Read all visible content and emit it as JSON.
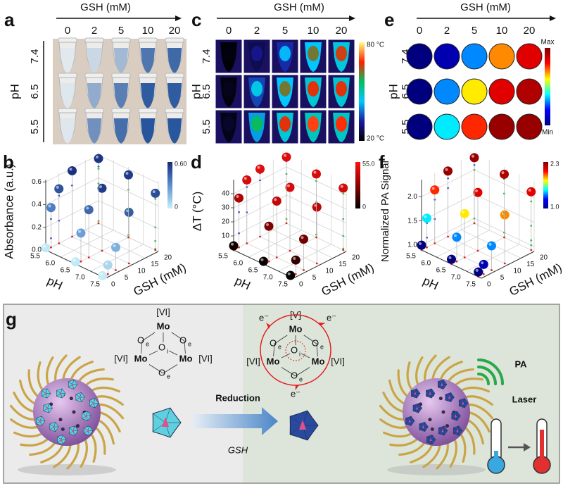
{
  "panel_a": {
    "label": "a",
    "title": "GSH (mM)",
    "columns": [
      0,
      2,
      5,
      10,
      20
    ],
    "axis_label": "pH",
    "rows": [
      7.4,
      6.5,
      5.5
    ]
  },
  "panel_c": {
    "label": "c",
    "title": "GSH (mM)",
    "columns": [
      0,
      2,
      5,
      10,
      20
    ],
    "axis_label": "pH",
    "rows": [
      7.4,
      6.5,
      5.5
    ],
    "colorbar_max": "80 °C",
    "colorbar_min": "20 °C",
    "colormap": [
      "#000000",
      "#1a1aa0",
      "#00c8ff",
      "#00c060",
      "#ff2000",
      "#ffff80"
    ]
  },
  "panel_e": {
    "label": "e",
    "title": "GSH (mM)",
    "columns": [
      0,
      2,
      5,
      10,
      20
    ],
    "axis_label": "pH",
    "rows": [
      7.4,
      6.5,
      5.5
    ],
    "colorbar_max": "Max",
    "colorbar_min": "Min"
  },
  "chart_data": [
    {
      "type": "scatter3d",
      "label": "b",
      "zlabel": "Absorbance (a.u.)",
      "xlabel": "pH",
      "ylabel": "GSH (mM)",
      "ph": [
        7.4,
        6.5,
        5.5
      ],
      "gsh": [
        0,
        2,
        5,
        10,
        20
      ],
      "values": [
        [
          0.01,
          0.08,
          0.2,
          0.45,
          0.5
        ],
        [
          0.02,
          0.25,
          0.42,
          0.55,
          0.55
        ],
        [
          0.02,
          0.35,
          0.48,
          0.58,
          0.57
        ]
      ],
      "xlim": [
        5.5,
        7.5
      ],
      "xticks": [
        5.5,
        {
          "value": 6,
          "label": "6.0"
        },
        6.5,
        {
          "value": 7,
          "label": "7.0"
        },
        7.5
      ],
      "ylim": [
        0,
        20
      ],
      "yticks": [
        0,
        5,
        10,
        15,
        20
      ],
      "zlim": [
        0,
        0.62
      ],
      "zticks": [
        {
          "value": 0,
          "label": "0.0"
        },
        0.2,
        0.4,
        0.6
      ],
      "clim": [
        0,
        {
          "value": 0.6,
          "label": "0.60"
        }
      ],
      "colormap": [
        "#c8f0f8",
        "#5a8fd0",
        "#142a7a"
      ]
    },
    {
      "type": "scatter3d",
      "label": "d",
      "zlabel": "ΔT (°C)",
      "xlabel": "pH",
      "ylabel": "GSH (mM)",
      "ph": [
        7.4,
        6.5,
        5.5
      ],
      "gsh": [
        0,
        2,
        5,
        10,
        20
      ],
      "values": [
        [
          1,
          10,
          22,
          40,
          44
        ],
        [
          2,
          25,
          40,
          45,
          45
        ],
        [
          3,
          35,
          45,
          48,
          47
        ]
      ],
      "xlim": [
        5.5,
        7.5
      ],
      "xticks": [
        5.5,
        {
          "value": 6,
          "label": "6.0"
        },
        6.5,
        {
          "value": 7,
          "label": "7.0"
        },
        7.5
      ],
      "ylim": [
        0,
        20
      ],
      "yticks": [
        0,
        5,
        10,
        15,
        20
      ],
      "zlim": [
        0,
        50
      ],
      "zticks": [
        10,
        20,
        30,
        40
      ],
      "clim": [
        0,
        {
          "value": 55,
          "label": "55.0"
        }
      ],
      "colormap": [
        "#000000",
        "#8b0000",
        "#ff1010"
      ]
    },
    {
      "type": "scatter3d",
      "label": "f",
      "zlabel": "Normalized PA Signal",
      "xlabel": "pH",
      "ylabel": "GSH (mM)",
      "ph": [
        7.4,
        6.5,
        5.5
      ],
      "gsh": [
        0,
        2,
        5,
        10,
        20
      ],
      "values": [
        [
          1.0,
          1.1,
          1.4,
          1.9,
          2.1
        ],
        [
          1.0,
          1.4,
          1.8,
          2.1,
          2.2
        ],
        [
          1.0,
          1.5,
          2.0,
          2.25,
          2.25
        ]
      ],
      "xlim": [
        5.5,
        7.5
      ],
      "xticks": [
        5.5,
        {
          "value": 6,
          "label": "6.0"
        },
        6.5,
        {
          "value": 7,
          "label": "7.0"
        },
        7.5
      ],
      "ylim": [
        0,
        20
      ],
      "yticks": [
        0,
        5,
        10,
        15,
        20
      ],
      "zlim": [
        0.9,
        2.35
      ],
      "zticks": [
        {
          "value": 1,
          "label": "1.0"
        },
        1.5,
        {
          "value": 2,
          "label": "2.0"
        }
      ],
      "clim": [
        {
          "value": 1,
          "label": "1.0"
        },
        2.3
      ],
      "colormap": [
        "#00007f",
        "#0000ff",
        "#00ffff",
        "#ffff00",
        "#ff0000",
        "#7f0000"
      ]
    }
  ],
  "panel_g": {
    "label": "g",
    "mo": "Mo",
    "o": "O",
    "sub_e": "e",
    "sub_i": "i",
    "ox_vi": "[VI]",
    "ox_v": "[V]",
    "electron": "e⁻",
    "reduction": "Reduction",
    "agent": "GSH",
    "pa": "PA",
    "laser": "Laser"
  }
}
